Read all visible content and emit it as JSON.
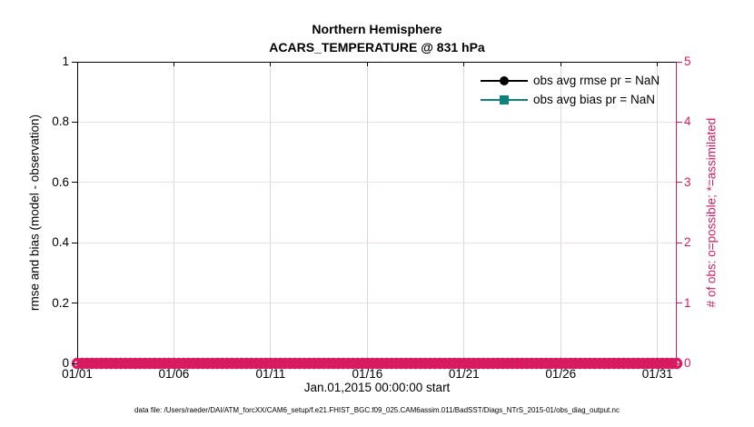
{
  "figure": {
    "title_line1": "Northern Hemisphere",
    "title_line2": "ACARS_TEMPERATURE @ 831 hPa",
    "xlabel": "Jan.01,2015 00:00:00 start",
    "ylabel_left": "rmse and bias (model - observation)",
    "ylabel_right": "# of obs: o=possible; *=assimilated",
    "caption": "data file: /Users/raeder/DAI/ATM_forcXX/CAM6_setup/f.e21.FHIST_BGC.f09_025.CAM6assim.011/BadSST/Diags_NTrS_2015-01/obs_diag_output.nc"
  },
  "colors": {
    "crimson": "#d81a60",
    "teal": "#0c837c",
    "black": "#000000",
    "grid_gray": "#d9d9d9",
    "grid_pink": "#f3dce6"
  },
  "legend": {
    "items": [
      {
        "label": "obs avg rmse pr = NaN",
        "color": "#000000",
        "marker": "circle"
      },
      {
        "label": "obs avg bias pr = NaN",
        "color": "#0c837c",
        "marker": "square"
      }
    ]
  },
  "chart_data": {
    "type": "line",
    "title": "Northern Hemisphere",
    "subtitle": "ACARS_TEMPERATURE @ 831 hPa",
    "xlabel": "Jan.01,2015 00:00:00 start",
    "ylabel_left": "rmse and bias (model - observation)",
    "ylabel_right": "# of obs: o=possible; *=assimilated",
    "x_range_days": 31,
    "x_tick_days": [
      0,
      5,
      10,
      15,
      20,
      25,
      30
    ],
    "x_tick_labels": [
      "01/01",
      "01/06",
      "01/11",
      "01/16",
      "01/21",
      "01/26",
      "01/31"
    ],
    "ylim_left": [
      0,
      1
    ],
    "y_left_ticks": [
      0,
      0.2,
      0.4,
      0.6,
      0.8,
      1
    ],
    "y_left_tick_labels": [
      "0",
      "0.2",
      "0.4",
      "0.6",
      "0.8",
      "1"
    ],
    "ylim_right": [
      0,
      5
    ],
    "y_right_ticks": [
      0,
      1,
      2,
      3,
      4,
      5
    ],
    "y_right_tick_labels": [
      "0",
      "1",
      "2",
      "3",
      "4",
      "5"
    ],
    "grid": true,
    "legend_position": "top-right-inside",
    "series": [
      {
        "name": "obs avg rmse pr = NaN",
        "axis": "left",
        "color": "#000000",
        "marker": "filled-circle",
        "values": "NaN (no curve plotted)"
      },
      {
        "name": "obs avg bias pr = NaN",
        "axis": "left",
        "color": "#0c837c",
        "marker": "filled-square",
        "values": "NaN (no curve plotted)"
      },
      {
        "name": "# of obs possible (o markers)",
        "axis": "right",
        "color": "#d81a60",
        "marker": "open-circle",
        "n_points": 125,
        "constant_value": 0
      }
    ]
  }
}
